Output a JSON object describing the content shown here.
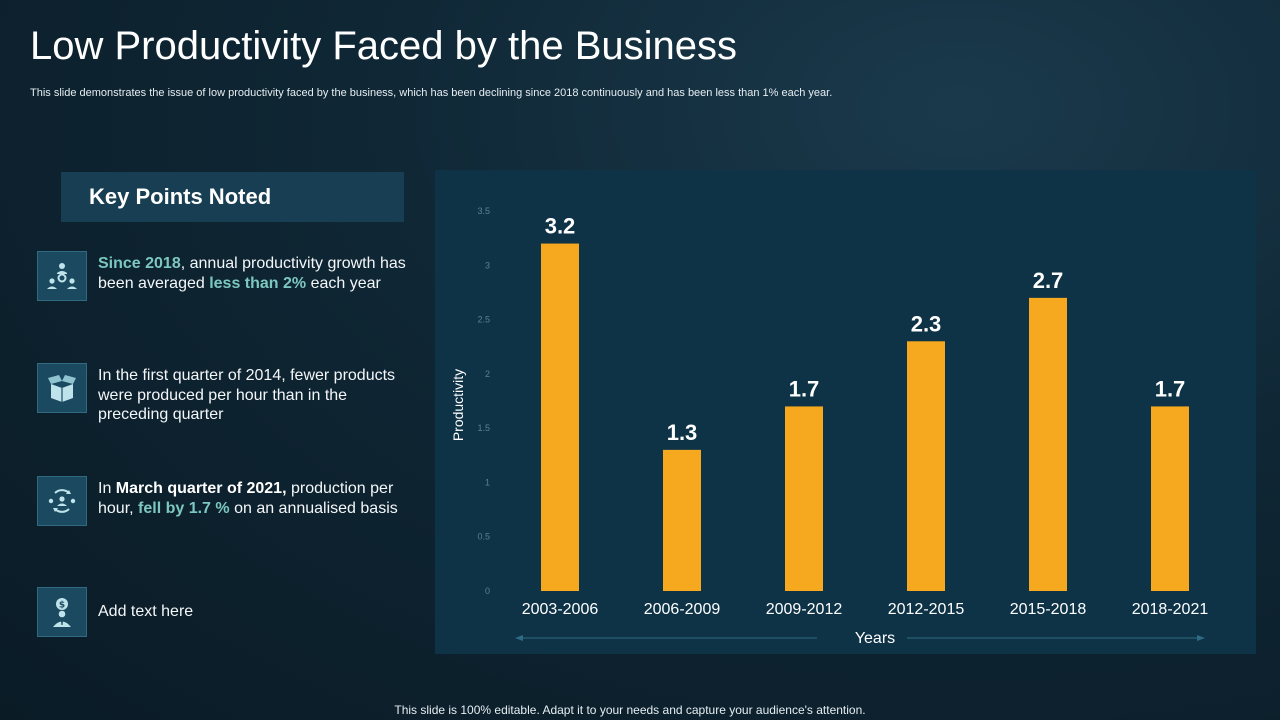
{
  "slide": {
    "title": "Low Productivity Faced by the Business",
    "subtitle": "This slide demonstrates the issue of low productivity faced by the business, which has been declining since 2018 continuously and has been less than 1%  each year.",
    "footer": "This slide is 100% editable. Adapt it to your needs and capture your audience's attention."
  },
  "key_points": {
    "header": "Key Points Noted",
    "items": [
      {
        "icon": "team-gear-icon",
        "parts": [
          {
            "text": "Since 2018",
            "style": "hl"
          },
          {
            "text": ", annual productivity growth has been averaged ",
            "style": ""
          },
          {
            "text": "less than 2%",
            "style": "hl"
          },
          {
            "text": " each year",
            "style": ""
          }
        ]
      },
      {
        "icon": "open-box-icon",
        "parts": [
          {
            "text": "In the first quarter of 2014, fewer products were produced per hour than in the preceding quarter",
            "style": ""
          }
        ]
      },
      {
        "icon": "team-cycle-icon",
        "parts": [
          {
            "text": "In ",
            "style": ""
          },
          {
            "text": "March quarter of 2021,",
            "style": "bw"
          },
          {
            "text": " production per hour, ",
            "style": ""
          },
          {
            "text": "fell by 1.7 %",
            "style": "hl"
          },
          {
            "text": " on an annualised basis",
            "style": ""
          }
        ]
      },
      {
        "icon": "businessman-dollar-icon",
        "parts": [
          {
            "text": "Add text here",
            "style": ""
          }
        ]
      }
    ]
  },
  "chart_data": {
    "type": "bar",
    "categories": [
      "2003-2006",
      "2006-2009",
      "2009-2012",
      "2012-2015",
      "2015-2018",
      "2018-2021"
    ],
    "values": [
      3.2,
      1.3,
      1.7,
      2.3,
      2.7,
      1.7
    ],
    "value_labels": [
      "3.2",
      "1.3",
      "1.7",
      "2.3",
      "2.7",
      "1.7"
    ],
    "title": "",
    "xlabel": "Years",
    "ylabel": "Productivity",
    "ylim": [
      0,
      3.5
    ],
    "yticks": [
      "0",
      "0.5",
      "1",
      "1.5",
      "2",
      "2.5",
      "3",
      "3.5"
    ],
    "grid": false,
    "bar_color": "#f6a81f",
    "panel_color": "#0e3347"
  }
}
